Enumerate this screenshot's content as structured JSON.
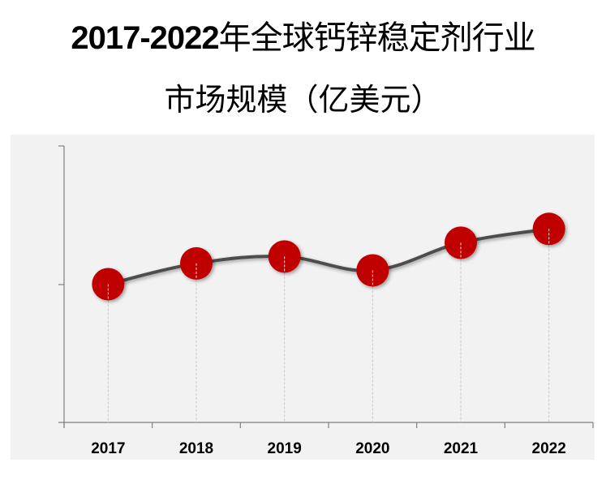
{
  "title": {
    "line1_year": "2017-2022",
    "line1_text": "年全球钙锌稳定剂行业",
    "line2": "市场规模（亿美元）"
  },
  "colors": {
    "background": "#f2f2f2",
    "line": "#4d4d4d",
    "marker": "#c00000",
    "axis": "#808080"
  },
  "chart_data": {
    "type": "line",
    "title": "2017-2022年全球钙锌稳定剂行业市场规模（亿美元）",
    "xlabel": "",
    "ylabel": "",
    "categories": [
      "2017",
      "2018",
      "2019",
      "2020",
      "2021",
      "2022"
    ],
    "values": [
      1.0,
      1.15,
      1.2,
      1.1,
      1.3,
      1.4
    ],
    "y_tick_labels_visible": false,
    "ylim": [
      0,
      2
    ],
    "grid": false,
    "smooth": true,
    "drop_lines": true,
    "legend": null
  }
}
